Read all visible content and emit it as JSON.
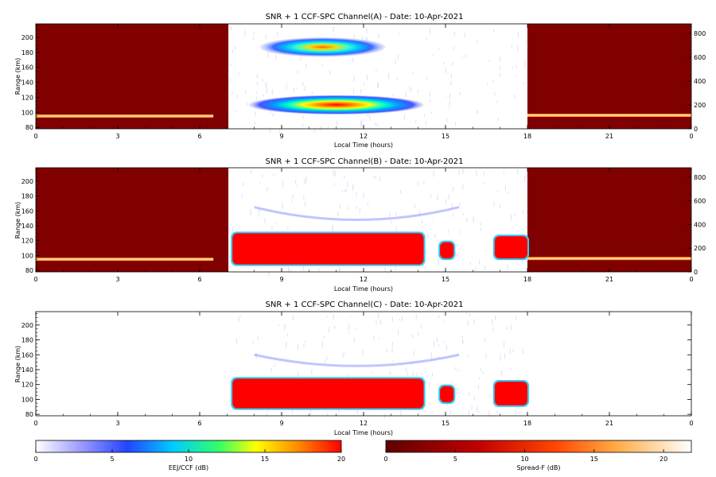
{
  "chart_data": [
    {
      "type": "heatmap",
      "title": "SNR + 1 CCF-SPC Channel(A) - Date: 10-Apr-2021",
      "xlabel": "Local Time (hours)",
      "ylabel": "Range (km)",
      "xlim": [
        0,
        24
      ],
      "ylim": [
        78,
        218
      ],
      "x_ticks": [
        "0",
        "3",
        "6",
        "9",
        "12",
        "15",
        "18",
        "21",
        "0"
      ],
      "y_ticks": [
        "80",
        "100",
        "120",
        "140",
        "160",
        "180",
        "200"
      ],
      "right_axis_ticks": [
        "0",
        "200",
        "400",
        "600",
        "800"
      ],
      "night_panels": [
        {
          "x0": 0,
          "x1": 7.05,
          "bright_bands": [
            {
              "x0": 0,
              "x1": 6.5,
              "y": 95
            }
          ]
        },
        {
          "x0": 18,
          "x1": 24,
          "bright_bands": [
            {
              "x0": 18,
              "x1": 24,
              "y": 96
            }
          ]
        }
      ],
      "echo_blobs": [
        {
          "center_hour": 10.5,
          "center_km": 187,
          "half_width_hours": 2.3,
          "half_height_km": 13,
          "peak_db": 14
        },
        {
          "center_hour": 11.0,
          "center_km": 110,
          "half_width_hours": 3.2,
          "half_height_km": 13,
          "peak_db": 18
        }
      ]
    },
    {
      "type": "heatmap",
      "title": "SNR + 1 CCF-SPC Channel(B) - Date: 10-Apr-2021",
      "xlabel": "Local Time (hours)",
      "ylabel": "Range (km)",
      "xlim": [
        0,
        24
      ],
      "ylim": [
        78,
        218
      ],
      "x_ticks": [
        "0",
        "3",
        "6",
        "9",
        "12",
        "15",
        "18",
        "21",
        "0"
      ],
      "y_ticks": [
        "80",
        "100",
        "120",
        "140",
        "160",
        "180",
        "200"
      ],
      "right_axis_ticks": [
        "0",
        "200",
        "400",
        "600",
        "800"
      ],
      "night_panels": [
        {
          "x0": 0,
          "x1": 7.05,
          "bright_bands": [
            {
              "x0": 0,
              "x1": 6.5,
              "y": 95
            }
          ]
        },
        {
          "x0": 18,
          "x1": 24,
          "bright_bands": [
            {
              "x0": 18,
              "x1": 24,
              "y": 96
            }
          ]
        }
      ],
      "saturated_regions": [
        {
          "x0": 7.2,
          "x1": 14.2,
          "y0": 88,
          "y1": 130,
          "value_db": 20
        },
        {
          "x0": 14.8,
          "x1": 15.3,
          "y0": 96,
          "y1": 118,
          "value_db": 16
        },
        {
          "x0": 16.8,
          "x1": 18.0,
          "y0": 96,
          "y1": 126,
          "value_db": 18
        }
      ],
      "faint_arc": {
        "x0": 8,
        "x1": 15.5,
        "top_km": 165,
        "bottom_km": 148,
        "value_db": 3
      }
    },
    {
      "type": "heatmap",
      "title": "SNR + 1 CCF-SPC Channel(C) - Date: 10-Apr-2021",
      "xlabel": "Local Time (hours)",
      "ylabel": "Range (km)",
      "xlim": [
        0,
        24
      ],
      "ylim": [
        78,
        218
      ],
      "x_ticks": [
        "0",
        "3",
        "6",
        "9",
        "12",
        "15",
        "18",
        "21",
        "0"
      ],
      "y_ticks": [
        "80",
        "100",
        "120",
        "140",
        "160",
        "180",
        "200"
      ],
      "saturated_regions": [
        {
          "x0": 7.2,
          "x1": 14.2,
          "y0": 88,
          "y1": 128,
          "value_db": 20
        },
        {
          "x0": 14.8,
          "x1": 15.3,
          "y0": 96,
          "y1": 118,
          "value_db": 16
        },
        {
          "x0": 16.8,
          "x1": 18.0,
          "y0": 92,
          "y1": 124,
          "value_db": 18
        }
      ],
      "faint_arc": {
        "x0": 8,
        "x1": 15.5,
        "top_km": 160,
        "bottom_km": 145,
        "value_db": 3
      }
    }
  ],
  "colorbars": [
    {
      "label": "EEJ/CCF (dB)",
      "ticks": [
        "0",
        "5",
        "10",
        "15",
        "20"
      ],
      "range": [
        0,
        20
      ],
      "colors": [
        "#ffffff",
        "#3333ff",
        "#00ffff",
        "#ffff00",
        "#ff0000"
      ]
    },
    {
      "label": "Spread-F (dB)",
      "ticks": [
        "0",
        "5",
        "10",
        "15",
        "20"
      ],
      "range": [
        0,
        22
      ],
      "colors": [
        "#600000",
        "#cc0000",
        "#ff6600",
        "#ffcc66",
        "#ffffff"
      ]
    }
  ]
}
